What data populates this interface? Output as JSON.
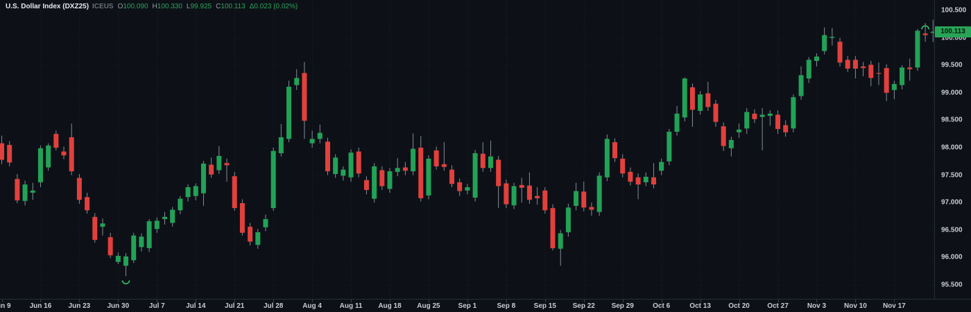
{
  "header": {
    "title": "U.S. Dollar Index (DXZ25)",
    "exchange": "ICEUS",
    "fields": [
      [
        "O",
        "100.090"
      ],
      [
        "H",
        "100.330"
      ],
      [
        "L",
        "99.925"
      ],
      [
        "C",
        "100.113"
      ]
    ],
    "change": "Δ0.023 (0.02%)"
  },
  "colors": {
    "background": "#0d1117",
    "up": "#22a257",
    "down": "#e2403d",
    "wick": "#878d97",
    "grid_vertical": "#97a4be",
    "grid_horizontal": "#97a4be",
    "axis_border": "#272d37",
    "axis_text": "#c9ccd3",
    "badge_bg": "#28a456",
    "badge_text": "#06170c",
    "marker_arc": "#35c06a"
  },
  "price_axis": {
    "min_price": 95.5,
    "max_price": 100.5,
    "step": 0.5,
    "labels": [
      "100.500",
      "100.000",
      "99.500",
      "99.000",
      "98.500",
      "98.000",
      "97.500",
      "97.000",
      "96.500",
      "96.000",
      "95.500"
    ],
    "last_price": "100.113"
  },
  "time_axis": {
    "labels": [
      {
        "text": "Jun 9",
        "candle": 0
      },
      {
        "text": "Jun 16",
        "candle": 5
      },
      {
        "text": "Jun 23",
        "candle": 10
      },
      {
        "text": "Jun 30",
        "candle": 15
      },
      {
        "text": "Jul 7",
        "candle": 20
      },
      {
        "text": "Jul 14",
        "candle": 25
      },
      {
        "text": "Jul 21",
        "candle": 30
      },
      {
        "text": "Jul 28",
        "candle": 35
      },
      {
        "text": "Aug 4",
        "candle": 40
      },
      {
        "text": "Aug 11",
        "candle": 45
      },
      {
        "text": "Aug 18",
        "candle": 50
      },
      {
        "text": "Aug 25",
        "candle": 55
      },
      {
        "text": "Sep 1",
        "candle": 60
      },
      {
        "text": "Sep 8",
        "candle": 65
      },
      {
        "text": "Sep 15",
        "candle": 70
      },
      {
        "text": "Sep 22",
        "candle": 75
      },
      {
        "text": "Sep 29",
        "candle": 80
      },
      {
        "text": "Oct 6",
        "candle": 85
      },
      {
        "text": "Oct 13",
        "candle": 90
      },
      {
        "text": "Oct 20",
        "candle": 95
      },
      {
        "text": "Oct 27",
        "candle": 100
      },
      {
        "text": "Nov 3",
        "candle": 105
      },
      {
        "text": "Nov 10",
        "candle": 110
      },
      {
        "text": "Nov 17",
        "candle": 115
      }
    ]
  },
  "chart_data": {
    "type": "candlestick",
    "title": "U.S. Dollar Index (DXZ25)",
    "ylim": [
      95.5,
      100.5
    ],
    "grid": "dotted-weekly",
    "legend_position": "none",
    "candles_format": [
      "date",
      "open",
      "high",
      "low",
      "close"
    ],
    "candles": [
      [
        "Jun 9",
        98.08,
        98.22,
        97.7,
        97.78
      ],
      [
        "Jun 10",
        98.05,
        98.12,
        97.66,
        97.73
      ],
      [
        "Jun 11",
        97.43,
        97.52,
        96.99,
        97.04
      ],
      [
        "Jun 12",
        97.03,
        97.4,
        96.95,
        97.33
      ],
      [
        "Jun 13",
        97.18,
        97.36,
        97.05,
        97.22
      ],
      [
        "Jun 16",
        97.37,
        98.04,
        97.28,
        97.99
      ],
      [
        "Jun 17",
        97.64,
        98.08,
        97.58,
        98.04
      ],
      [
        "Jun 18",
        98.25,
        98.31,
        97.95,
        98.0
      ],
      [
        "Jun 19",
        97.93,
        98.02,
        97.79,
        97.86
      ],
      [
        "Jun 20",
        98.19,
        98.44,
        97.5,
        97.57
      ],
      [
        "Jun 23",
        97.45,
        97.52,
        96.98,
        97.05
      ],
      [
        "Jun 24",
        97.1,
        97.18,
        96.8,
        96.86
      ],
      [
        "Jun 25",
        96.74,
        96.81,
        96.27,
        96.32
      ],
      [
        "Jun 26",
        96.56,
        96.71,
        96.4,
        96.62
      ],
      [
        "Jun 27",
        96.37,
        96.45,
        95.99,
        96.04
      ],
      [
        "Jun 30",
        95.92,
        96.09,
        95.88,
        96.03
      ],
      [
        "Jul 1",
        95.85,
        96.08,
        95.66,
        96.02
      ],
      [
        "Jul 2",
        95.95,
        96.45,
        95.9,
        96.4
      ],
      [
        "Jul 3",
        96.19,
        96.44,
        96.11,
        96.38
      ],
      [
        "Jul 4",
        96.17,
        96.7,
        96.1,
        96.66
      ],
      [
        "Jul 7",
        96.52,
        96.73,
        96.45,
        96.67
      ],
      [
        "Jul 8",
        96.7,
        96.83,
        96.6,
        96.74
      ],
      [
        "Jul 9",
        96.63,
        96.92,
        96.56,
        96.87
      ],
      [
        "Jul 10",
        96.86,
        97.12,
        96.79,
        97.07
      ],
      [
        "Jul 11",
        97.1,
        97.33,
        97.02,
        97.28
      ],
      [
        "Jul 14",
        97.12,
        97.35,
        97.04,
        97.3
      ],
      [
        "Jul 15",
        97.17,
        97.76,
        96.94,
        97.71
      ],
      [
        "Jul 16",
        97.69,
        97.82,
        97.45,
        97.51
      ],
      [
        "Jul 17",
        97.59,
        98.03,
        97.52,
        97.85
      ],
      [
        "Jul 18",
        97.72,
        97.8,
        97.38,
        97.68
      ],
      [
        "Jul 21",
        97.48,
        97.56,
        96.85,
        96.9
      ],
      [
        "Jul 22",
        96.99,
        97.06,
        96.4,
        96.45
      ],
      [
        "Jul 23",
        96.56,
        96.63,
        96.22,
        96.29
      ],
      [
        "Jul 24",
        96.23,
        96.52,
        96.16,
        96.46
      ],
      [
        "Jul 25",
        96.55,
        96.78,
        96.48,
        96.7
      ],
      [
        "Jul 28",
        96.9,
        98.0,
        96.85,
        97.94
      ],
      [
        "Jul 29",
        97.9,
        98.43,
        97.84,
        98.19
      ],
      [
        "Jul 30",
        98.16,
        99.22,
        98.1,
        99.11
      ],
      [
        "Jul 31",
        99.14,
        99.43,
        99.05,
        99.27
      ],
      [
        "Aug 1",
        99.36,
        99.56,
        98.16,
        98.49
      ],
      [
        "Aug 4",
        98.08,
        98.31,
        98.0,
        98.16
      ],
      [
        "Aug 5",
        98.16,
        98.42,
        98.08,
        98.27
      ],
      [
        "Aug 6",
        98.11,
        98.18,
        97.5,
        97.57
      ],
      [
        "Aug 7",
        97.52,
        97.88,
        97.45,
        97.82
      ],
      [
        "Aug 8",
        97.49,
        97.66,
        97.4,
        97.6
      ],
      [
        "Aug 11",
        97.46,
        97.97,
        97.38,
        97.91
      ],
      [
        "Aug 12",
        97.93,
        98.0,
        97.46,
        97.53
      ],
      [
        "Aug 13",
        97.41,
        97.48,
        97.15,
        97.23
      ],
      [
        "Aug 14",
        97.07,
        97.72,
        97.0,
        97.66
      ],
      [
        "Aug 15",
        97.59,
        97.66,
        97.23,
        97.3
      ],
      [
        "Aug 18",
        97.25,
        97.63,
        97.18,
        97.57
      ],
      [
        "Aug 19",
        97.56,
        97.81,
        97.48,
        97.63
      ],
      [
        "Aug 20",
        97.64,
        97.74,
        97.5,
        97.58
      ],
      [
        "Aug 21",
        97.57,
        98.26,
        97.5,
        97.98
      ],
      [
        "Aug 22",
        98.0,
        98.21,
        97.02,
        97.08
      ],
      [
        "Aug 25",
        97.13,
        97.86,
        97.06,
        97.8
      ],
      [
        "Aug 26",
        97.95,
        98.02,
        97.6,
        97.66
      ],
      [
        "Aug 27",
        97.7,
        98.1,
        97.58,
        97.65
      ],
      [
        "Aug 28",
        97.6,
        97.68,
        97.28,
        97.34
      ],
      [
        "Aug 29",
        97.37,
        97.44,
        97.12,
        97.21
      ],
      [
        "Sep 1",
        97.22,
        97.34,
        97.15,
        97.28
      ],
      [
        "Sep 2",
        97.09,
        97.96,
        97.02,
        97.9
      ],
      [
        "Sep 3",
        97.89,
        98.1,
        97.56,
        97.63
      ],
      [
        "Sep 4",
        97.63,
        98.13,
        97.56,
        97.84
      ],
      [
        "Sep 5",
        97.78,
        97.85,
        96.9,
        97.3
      ],
      [
        "Sep 8",
        97.35,
        97.42,
        96.9,
        96.97
      ],
      [
        "Sep 9",
        96.95,
        97.36,
        96.88,
        97.3
      ],
      [
        "Sep 10",
        97.32,
        97.45,
        97.0,
        97.27
      ],
      [
        "Sep 11",
        97.31,
        97.55,
        96.98,
        97.05
      ],
      [
        "Sep 12",
        97.12,
        97.28,
        96.96,
        97.08
      ],
      [
        "Sep 15",
        97.22,
        97.28,
        96.8,
        96.86
      ],
      [
        "Sep 16",
        96.9,
        96.97,
        96.13,
        96.17
      ],
      [
        "Sep 17",
        96.16,
        96.5,
        95.85,
        96.44
      ],
      [
        "Sep 18",
        96.46,
        96.98,
        96.38,
        96.91
      ],
      [
        "Sep 19",
        96.94,
        97.36,
        96.86,
        97.21
      ],
      [
        "Sep 22",
        97.2,
        97.38,
        96.84,
        96.91
      ],
      [
        "Sep 23",
        96.92,
        97.0,
        96.76,
        96.87
      ],
      [
        "Sep 24",
        96.83,
        97.55,
        96.76,
        97.49
      ],
      [
        "Sep 25",
        97.46,
        98.24,
        97.39,
        98.16
      ],
      [
        "Sep 26",
        98.1,
        98.17,
        97.74,
        97.81
      ],
      [
        "Sep 29",
        97.8,
        97.88,
        97.46,
        97.53
      ],
      [
        "Sep 30",
        97.56,
        97.64,
        97.31,
        97.38
      ],
      [
        "Oct 1",
        97.46,
        97.53,
        97.06,
        97.33
      ],
      [
        "Oct 2",
        97.37,
        97.55,
        97.3,
        97.47
      ],
      [
        "Oct 3",
        97.46,
        97.72,
        97.26,
        97.33
      ],
      [
        "Oct 6",
        97.58,
        97.8,
        97.5,
        97.74
      ],
      [
        "Oct 7",
        97.75,
        98.34,
        97.68,
        98.29
      ],
      [
        "Oct 8",
        98.29,
        98.76,
        98.22,
        98.62
      ],
      [
        "Oct 9",
        98.55,
        99.28,
        98.48,
        99.26
      ],
      [
        "Oct 10",
        99.1,
        99.17,
        98.38,
        98.69
      ],
      [
        "Oct 13",
        98.67,
        99.03,
        98.6,
        98.97
      ],
      [
        "Oct 14",
        98.99,
        99.2,
        98.67,
        98.74
      ],
      [
        "Oct 15",
        98.8,
        98.87,
        98.38,
        98.47
      ],
      [
        "Oct 16",
        98.39,
        98.46,
        97.94,
        98.03
      ],
      [
        "Oct 17",
        97.99,
        98.2,
        97.84,
        98.14
      ],
      [
        "Oct 20",
        98.28,
        98.44,
        98.18,
        98.33
      ],
      [
        "Oct 21",
        98.35,
        98.72,
        98.25,
        98.65
      ],
      [
        "Oct 22",
        98.62,
        98.7,
        98.45,
        98.52
      ],
      [
        "Oct 23",
        98.56,
        98.72,
        97.95,
        98.6
      ],
      [
        "Oct 24",
        98.58,
        98.68,
        98.4,
        98.62
      ],
      [
        "Oct 27",
        98.6,
        98.68,
        98.25,
        98.34
      ],
      [
        "Oct 28",
        98.41,
        98.5,
        98.2,
        98.28
      ],
      [
        "Oct 29",
        98.35,
        98.97,
        98.28,
        98.92
      ],
      [
        "Oct 30",
        98.94,
        99.48,
        98.87,
        99.32
      ],
      [
        "Oct 31",
        99.26,
        99.65,
        99.18,
        99.6
      ],
      [
        "Nov 3",
        99.58,
        99.72,
        99.48,
        99.66
      ],
      [
        "Nov 4",
        99.76,
        100.19,
        99.7,
        100.05
      ],
      [
        "Nov 5",
        100.0,
        100.18,
        99.86,
        100.02
      ],
      [
        "Nov 6",
        99.93,
        100.0,
        99.48,
        99.55
      ],
      [
        "Nov 7",
        99.6,
        99.67,
        99.38,
        99.44
      ],
      [
        "Nov 10",
        99.6,
        99.67,
        99.26,
        99.44
      ],
      [
        "Nov 11",
        99.48,
        99.56,
        99.3,
        99.45
      ],
      [
        "Nov 12",
        99.51,
        99.58,
        99.12,
        99.27
      ],
      [
        "Nov 13",
        99.36,
        99.55,
        99.14,
        99.35
      ],
      [
        "Nov 14",
        99.45,
        99.52,
        98.85,
        99.0
      ],
      [
        "Nov 17",
        99.05,
        99.22,
        98.88,
        99.16
      ],
      [
        "Nov 18",
        99.14,
        99.5,
        99.06,
        99.46
      ],
      [
        "Nov 19",
        99.46,
        99.62,
        99.22,
        99.43
      ],
      [
        "Nov 20",
        99.46,
        100.16,
        99.4,
        100.13
      ],
      [
        "Nov 21",
        100.08,
        100.27,
        99.93,
        100.05
      ],
      [
        "Nov 24",
        100.09,
        100.33,
        99.925,
        100.113
      ]
    ],
    "markers": [
      {
        "name": "low-arc-marker",
        "candle": 16,
        "side": "below"
      },
      {
        "name": "high-arc-marker",
        "candle": 119,
        "side": "above"
      }
    ]
  }
}
